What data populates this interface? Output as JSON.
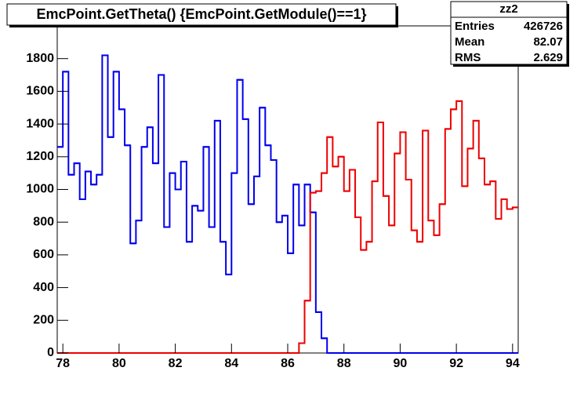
{
  "chart_data": {
    "type": "histogram",
    "title": "EmcPoint.GetTheta() {EmcPoint.GetModule()==1}",
    "stats": {
      "name": "zz2",
      "rows": [
        {
          "label": "Entries",
          "value": 426726
        },
        {
          "label": "Mean",
          "value": 82.07
        },
        {
          "label": "RMS",
          "value": 2.629
        }
      ]
    },
    "bins": [
      77.8,
      78.0,
      78.2,
      78.4,
      78.6,
      78.8,
      79.0,
      79.2,
      79.4,
      79.6,
      79.8,
      80.0,
      80.2,
      80.4,
      80.6,
      80.8,
      81.0,
      81.2,
      81.4,
      81.6,
      81.8,
      82.0,
      82.2,
      82.4,
      82.6,
      82.8,
      83.0,
      83.2,
      83.4,
      83.6,
      83.8,
      84.0,
      84.2,
      84.4,
      84.6,
      84.8,
      85.0,
      85.2,
      85.4,
      85.6,
      85.8,
      86.0,
      86.2,
      86.4,
      86.6,
      86.8,
      87.0,
      87.2,
      87.4,
      87.6,
      87.8,
      88.0,
      88.2,
      88.4,
      88.6,
      88.8,
      89.0,
      89.2,
      89.4,
      89.6,
      89.8,
      90.0,
      90.2,
      90.4,
      90.6,
      90.8,
      91.0,
      91.2,
      91.4,
      91.6,
      91.8,
      92.0,
      92.2,
      92.4,
      92.6,
      92.8,
      93.0,
      93.2,
      93.4,
      93.6,
      93.8,
      94.0,
      94.2
    ],
    "series": [
      {
        "color": "#0000ee",
        "values": [
          1260,
          1720,
          1090,
          1160,
          940,
          1110,
          1030,
          1090,
          1820,
          1320,
          1720,
          1490,
          1270,
          670,
          810,
          1260,
          1380,
          1160,
          1700,
          770,
          1100,
          1000,
          1170,
          680,
          900,
          870,
          1260,
          770,
          1420,
          680,
          480,
          1100,
          1670,
          1430,
          910,
          1080,
          1500,
          1270,
          1180,
          800,
          840,
          610,
          1030,
          780,
          1030,
          860,
          250,
          90,
          0,
          0,
          0,
          0,
          0,
          0,
          0,
          0,
          0,
          0,
          0,
          0,
          0,
          0,
          0,
          0,
          0,
          0,
          0,
          0,
          0,
          0,
          0,
          0,
          0,
          0,
          0,
          0,
          0,
          0,
          0,
          0,
          0,
          0
        ]
      },
      {
        "color": "#ee0000",
        "values": [
          0,
          0,
          0,
          0,
          0,
          0,
          0,
          0,
          0,
          0,
          0,
          0,
          0,
          0,
          0,
          0,
          0,
          0,
          0,
          0,
          0,
          0,
          0,
          0,
          0,
          0,
          0,
          0,
          0,
          0,
          0,
          0,
          0,
          0,
          0,
          0,
          0,
          0,
          0,
          0,
          0,
          0,
          0,
          60,
          320,
          980,
          990,
          1100,
          1320,
          1140,
          1200,
          990,
          1120,
          830,
          630,
          680,
          1050,
          1410,
          960,
          780,
          1220,
          1350,
          1060,
          750,
          680,
          1360,
          810,
          720,
          910,
          1370,
          1490,
          1540,
          1020,
          1250,
          1420,
          1190,
          1030,
          1050,
          820,
          940,
          880,
          890
        ]
      }
    ],
    "xlim": [
      77.8,
      94.2
    ],
    "xticks": [
      78,
      80,
      82,
      84,
      86,
      88,
      90,
      92,
      94
    ],
    "ylim": [
      0,
      2000
    ],
    "yticks": [
      0,
      200,
      400,
      600,
      800,
      1000,
      1200,
      1400,
      1600,
      1800
    ]
  }
}
